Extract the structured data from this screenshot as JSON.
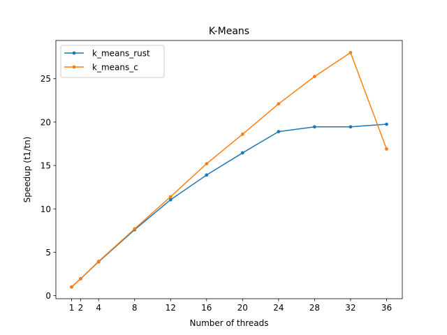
{
  "chart_data": {
    "type": "line",
    "title": "K-Means",
    "xlabel": "Number of threads",
    "ylabel": "Speedup (t1/tn)",
    "x": [
      1,
      2,
      4,
      8,
      12,
      16,
      20,
      24,
      28,
      32,
      36
    ],
    "xticks": [
      1,
      2,
      4,
      8,
      12,
      16,
      20,
      24,
      28,
      32,
      36
    ],
    "yticks": [
      0,
      5,
      10,
      15,
      20,
      25
    ],
    "xlim": [
      -0.75,
      37.75
    ],
    "ylim": [
      -0.35,
      29.4
    ],
    "grid": false,
    "legend_position": "upper-left",
    "series": [
      {
        "name": "k_means_rust",
        "color": "#1f77b4",
        "values": [
          1.0,
          1.95,
          3.9,
          7.6,
          11.05,
          13.9,
          16.45,
          18.9,
          19.45,
          19.45,
          19.75
        ]
      },
      {
        "name": "k_means_c",
        "color": "#ff7f0e",
        "values": [
          1.0,
          1.95,
          3.95,
          7.7,
          11.4,
          15.2,
          18.6,
          22.1,
          25.25,
          28.0,
          16.9
        ]
      }
    ]
  }
}
